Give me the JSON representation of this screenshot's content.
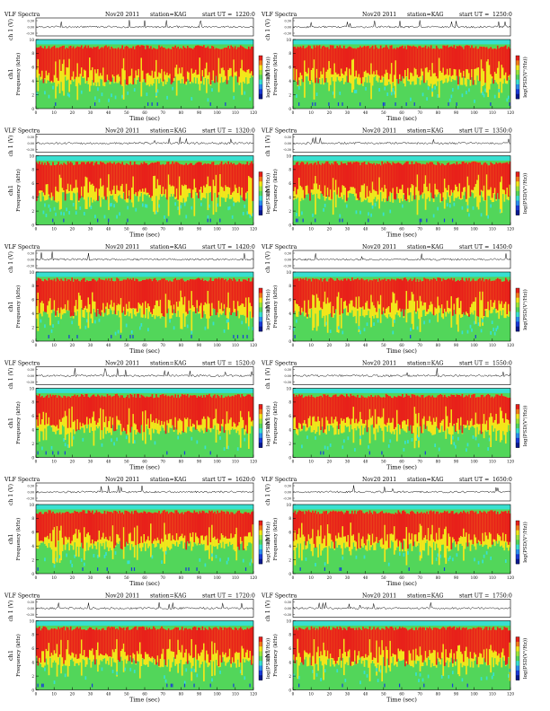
{
  "page": {
    "header_left": "VLF Spectra",
    "header_date": "Nov20 2011",
    "header_station": "station=KAG",
    "header_start_prefix": "start  UT =",
    "xlabel": "Time  (sec)",
    "ylabel_top": "ch 1 (V)",
    "ylabel_spec": "Frequency  (kHz)",
    "ylabel_ch": "ch1",
    "colorbar_label": "log(PSD(V²/Hz))"
  },
  "colors": {
    "red": "#e8201a",
    "yellow": "#f3e61a",
    "green": "#52d65a",
    "cyan": "#38e0d0",
    "blue": "#1a3ad8",
    "trace": "#000000"
  },
  "chart_data": [
    {
      "type": "heatmap",
      "start_ut": "1220:0",
      "xlim": [
        0,
        120
      ],
      "ylim": [
        0,
        10
      ],
      "xticks": [
        0,
        10,
        20,
        30,
        40,
        50,
        60,
        70,
        80,
        90,
        100,
        110,
        120
      ],
      "yticks": [
        0,
        2,
        4,
        6,
        8,
        10
      ],
      "trace_ticks": [
        "0.30",
        "0.00",
        "-0.30"
      ],
      "colorbar_ticks": [
        "",
        ""
      ]
    },
    {
      "type": "heatmap",
      "start_ut": "1250:0",
      "xlim": [
        0,
        120
      ],
      "ylim": [
        0,
        10
      ],
      "xticks": [
        0,
        10,
        20,
        30,
        40,
        50,
        60,
        70,
        80,
        90,
        100,
        110,
        120
      ],
      "yticks": [
        0,
        2,
        4,
        6,
        8,
        10
      ],
      "trace_ticks": [
        "0.30",
        "0.00",
        "-0.30"
      ],
      "colorbar_ticks": [
        "",
        ""
      ]
    },
    {
      "type": "heatmap",
      "start_ut": "1320:0",
      "xlim": [
        0,
        120
      ],
      "ylim": [
        0,
        10
      ],
      "xticks": [
        0,
        10,
        20,
        30,
        40,
        50,
        60,
        70,
        80,
        90,
        100,
        110,
        120
      ],
      "yticks": [
        0,
        2,
        4,
        6,
        8,
        10
      ],
      "trace_ticks": [
        "0.30",
        "0.00",
        "-0.30"
      ],
      "colorbar_ticks": [
        "",
        ""
      ]
    },
    {
      "type": "heatmap",
      "start_ut": "1350:0",
      "xlim": [
        0,
        120
      ],
      "ylim": [
        0,
        10
      ],
      "xticks": [
        0,
        10,
        20,
        30,
        40,
        50,
        60,
        70,
        80,
        90,
        100,
        110,
        120
      ],
      "yticks": [
        0,
        2,
        4,
        6,
        8,
        10
      ],
      "trace_ticks": [
        "0.30",
        "0.00",
        "-0.30"
      ],
      "colorbar_ticks": [
        "",
        ""
      ]
    },
    {
      "type": "heatmap",
      "start_ut": "1420:0",
      "xlim": [
        0,
        120
      ],
      "ylim": [
        0,
        10
      ],
      "xticks": [
        0,
        10,
        20,
        30,
        40,
        50,
        60,
        70,
        80,
        90,
        100,
        110,
        120
      ],
      "yticks": [
        0,
        2,
        4,
        6,
        8,
        10
      ],
      "trace_ticks": [
        "0.30",
        "0.00",
        "-0.30"
      ],
      "colorbar_ticks": [
        "",
        ""
      ]
    },
    {
      "type": "heatmap",
      "start_ut": "1450:0",
      "xlim": [
        0,
        120
      ],
      "ylim": [
        0,
        10
      ],
      "xticks": [
        0,
        10,
        20,
        30,
        40,
        50,
        60,
        70,
        80,
        90,
        100,
        110,
        120
      ],
      "yticks": [
        0,
        2,
        4,
        6,
        8,
        10
      ],
      "trace_ticks": [
        "0.30",
        "0.00",
        "-0.30"
      ],
      "colorbar_ticks": [
        "",
        ""
      ]
    },
    {
      "type": "heatmap",
      "start_ut": "1520:0",
      "xlim": [
        0,
        120
      ],
      "ylim": [
        0,
        10
      ],
      "xticks": [
        0,
        10,
        20,
        30,
        40,
        50,
        60,
        70,
        80,
        90,
        100,
        110,
        120
      ],
      "yticks": [
        0,
        2,
        4,
        6,
        8,
        10
      ],
      "trace_ticks": [
        "0.30",
        "0.00",
        "-0.30"
      ],
      "colorbar_ticks": [
        "",
        ""
      ]
    },
    {
      "type": "heatmap",
      "start_ut": "1550:0",
      "xlim": [
        0,
        120
      ],
      "ylim": [
        0,
        10
      ],
      "xticks": [
        0,
        10,
        20,
        30,
        40,
        50,
        60,
        70,
        80,
        90,
        100,
        110,
        120
      ],
      "yticks": [
        0,
        2,
        4,
        6,
        8,
        10
      ],
      "trace_ticks": [
        "0.30",
        "0.00",
        "-0.30"
      ],
      "colorbar_ticks": [
        "",
        ""
      ]
    },
    {
      "type": "heatmap",
      "start_ut": "1620:0",
      "xlim": [
        0,
        120
      ],
      "ylim": [
        0,
        10
      ],
      "xticks": [
        0,
        10,
        20,
        30,
        40,
        50,
        60,
        70,
        80,
        90,
        100,
        110,
        120
      ],
      "yticks": [
        0,
        2,
        4,
        6,
        8,
        10
      ],
      "trace_ticks": [
        "0.30",
        "0.00",
        "-0.30"
      ],
      "colorbar_ticks": [
        "",
        ""
      ]
    },
    {
      "type": "heatmap",
      "start_ut": "1650:0",
      "xlim": [
        0,
        120
      ],
      "ylim": [
        0,
        10
      ],
      "xticks": [
        0,
        10,
        20,
        30,
        40,
        50,
        60,
        70,
        80,
        90,
        100,
        110,
        120
      ],
      "yticks": [
        0,
        2,
        4,
        6,
        8,
        10
      ],
      "trace_ticks": [
        "0.30",
        "0.00",
        "-0.30"
      ],
      "colorbar_ticks": [
        "",
        ""
      ]
    },
    {
      "type": "heatmap",
      "start_ut": "1720:0",
      "xlim": [
        0,
        120
      ],
      "ylim": [
        0,
        10
      ],
      "xticks": [
        0,
        10,
        20,
        30,
        40,
        50,
        60,
        70,
        80,
        90,
        100,
        110,
        120
      ],
      "yticks": [
        0,
        2,
        4,
        6,
        8,
        10
      ],
      "trace_ticks": [
        "0.30",
        "0.00",
        "-0.30"
      ],
      "colorbar_ticks": [
        "",
        ""
      ]
    },
    {
      "type": "heatmap",
      "start_ut": "1750:0",
      "xlim": [
        0,
        120
      ],
      "ylim": [
        0,
        10
      ],
      "xticks": [
        0,
        10,
        20,
        30,
        40,
        50,
        60,
        70,
        80,
        90,
        100,
        110,
        120
      ],
      "yticks": [
        0,
        2,
        4,
        6,
        8,
        10
      ],
      "trace_ticks": [
        "0.30",
        "0.00",
        "-0.30"
      ],
      "colorbar_ticks": [
        "",
        ""
      ]
    }
  ]
}
